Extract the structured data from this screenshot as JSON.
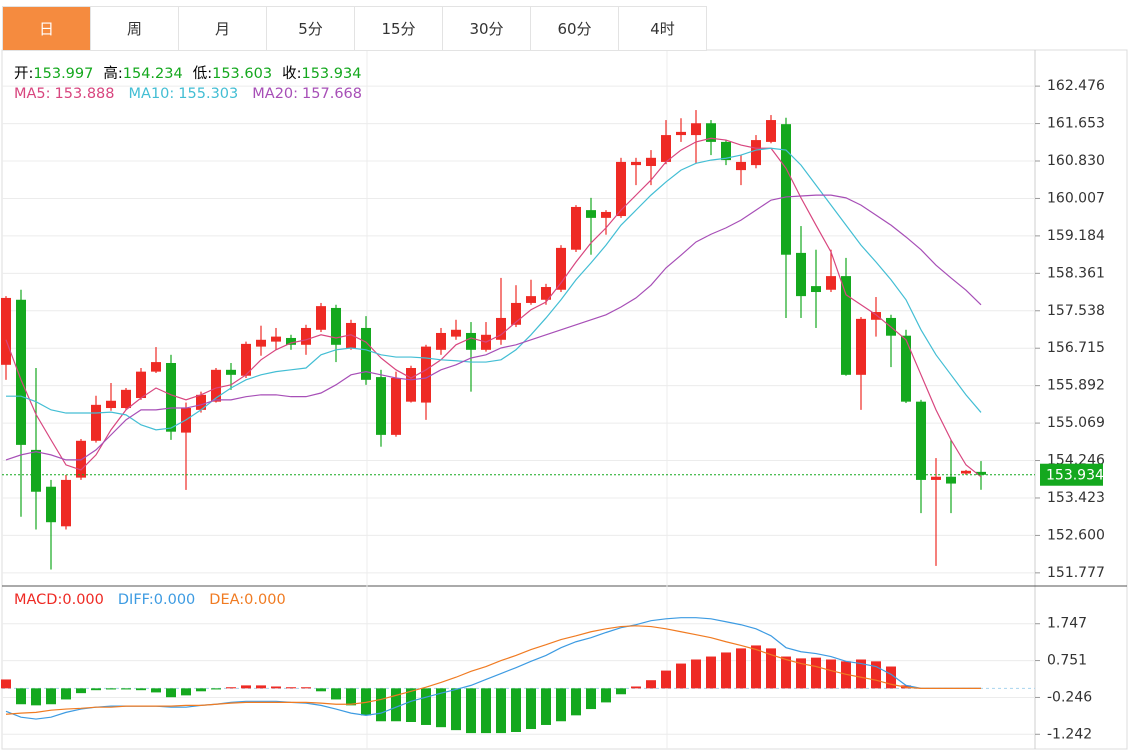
{
  "tabs": [
    "日",
    "周",
    "月",
    "5分",
    "15分",
    "30分",
    "60分",
    "4时"
  ],
  "chart_data": [
    {
      "type": "candlestick",
      "ohlc_labels": [
        "开",
        "高",
        "低",
        "收"
      ],
      "up_color": "#ee2a24",
      "down_color": "#14a81e",
      "open": [
        156.35,
        157.78,
        154.48,
        153.67,
        152.8,
        153.87,
        154.68,
        155.4,
        155.4,
        155.62,
        156.2,
        156.39,
        154.86,
        155.36,
        155.54,
        156.24,
        156.11,
        156.75,
        156.86,
        156.94,
        156.79,
        157.12,
        157.6,
        156.72,
        157.16,
        156.08,
        154.81,
        155.54,
        155.52,
        156.68,
        156.97,
        157.05,
        156.68,
        156.9,
        157.23,
        157.71,
        157.78,
        158.0,
        158.88,
        159.75,
        159.58,
        159.62,
        160.74,
        160.72,
        160.81,
        161.4,
        161.4,
        161.66,
        161.25,
        160.63,
        160.74,
        161.25,
        161.64,
        158.81,
        158.08,
        158.0,
        158.3,
        156.13,
        157.34,
        157.38,
        156.99,
        155.54,
        153.82,
        153.89,
        153.96,
        153.997
      ],
      "high": [
        157.86,
        158.0,
        156.28,
        153.82,
        153.93,
        154.72,
        155.67,
        155.95,
        155.84,
        156.28,
        156.74,
        156.57,
        155.52,
        155.76,
        156.28,
        156.39,
        156.86,
        157.21,
        157.16,
        157.01,
        157.23,
        157.71,
        157.67,
        157.34,
        157.42,
        156.24,
        156.2,
        156.33,
        156.79,
        157.16,
        157.34,
        157.29,
        157.29,
        158.26,
        158.1,
        158.22,
        158.13,
        158.98,
        159.86,
        160.02,
        159.75,
        160.9,
        160.9,
        161.07,
        161.73,
        161.77,
        161.95,
        161.73,
        161.29,
        160.96,
        161.4,
        161.84,
        161.78,
        159.4,
        158.88,
        158.88,
        158.7,
        157.4,
        157.84,
        157.45,
        157.12,
        155.58,
        154.3,
        154.7,
        154.04,
        154.234
      ],
      "low": [
        156.02,
        153.01,
        152.73,
        151.85,
        152.73,
        153.82,
        154.64,
        155.34,
        155.36,
        155.58,
        156.17,
        154.7,
        153.6,
        155.3,
        155.52,
        155.8,
        156.06,
        156.55,
        156.68,
        156.68,
        156.57,
        157.07,
        156.41,
        156.68,
        155.91,
        154.55,
        154.77,
        155.52,
        155.14,
        156.57,
        156.9,
        155.76,
        156.64,
        156.79,
        157.18,
        157.67,
        157.67,
        157.95,
        158.83,
        158.77,
        159.21,
        159.58,
        160.3,
        160.3,
        160.76,
        161.25,
        160.78,
        160.96,
        160.74,
        160.3,
        160.67,
        161.22,
        157.38,
        157.38,
        157.16,
        157.95,
        156.11,
        155.36,
        156.97,
        156.3,
        155.51,
        153.09,
        151.93,
        153.09,
        153.93,
        153.603
      ],
      "close": [
        157.82,
        154.59,
        153.56,
        152.89,
        153.82,
        154.68,
        155.47,
        155.56,
        155.8,
        156.2,
        156.41,
        154.88,
        155.4,
        155.69,
        156.24,
        156.13,
        156.81,
        156.9,
        156.97,
        156.79,
        157.16,
        157.64,
        156.79,
        157.27,
        156.02,
        154.81,
        156.06,
        156.28,
        156.75,
        157.05,
        157.12,
        156.68,
        157.01,
        157.38,
        157.71,
        157.86,
        158.06,
        158.92,
        159.82,
        159.58,
        159.71,
        160.81,
        160.81,
        160.9,
        161.4,
        161.47,
        161.66,
        161.25,
        160.85,
        160.81,
        161.29,
        161.73,
        158.77,
        157.86,
        157.95,
        158.3,
        156.13,
        157.36,
        157.51,
        156.99,
        155.54,
        153.82,
        153.89,
        153.74,
        154.02,
        153.934
      ],
      "series": [
        {
          "name": "MA5",
          "color": "#d8467f",
          "values": [
            156.9,
            156.02,
            155.26,
            154.7,
            154.15,
            154.04,
            154.37,
            154.92,
            155.36,
            155.62,
            155.84,
            155.69,
            155.58,
            155.69,
            155.84,
            155.91,
            156.13,
            156.46,
            156.68,
            156.83,
            156.9,
            157.01,
            156.94,
            157.01,
            156.85,
            156.5,
            156.24,
            156.06,
            156.24,
            156.46,
            156.79,
            156.94,
            156.85,
            157.01,
            157.29,
            157.56,
            157.73,
            158.15,
            158.61,
            159.03,
            159.36,
            159.75,
            160.08,
            160.41,
            160.81,
            161.07,
            161.25,
            161.33,
            161.29,
            161.18,
            161.11,
            161.11,
            160.67,
            160.02,
            159.42,
            158.83,
            157.89,
            157.67,
            157.45,
            157.18,
            156.9,
            156.13,
            155.36,
            154.7,
            154.15,
            153.888
          ]
        },
        {
          "name": "MA10",
          "color": "#43bed4",
          "values": [
            155.66,
            155.66,
            155.54,
            155.36,
            155.29,
            155.29,
            155.29,
            155.31,
            155.25,
            155.03,
            154.92,
            154.96,
            155.14,
            155.36,
            155.62,
            155.84,
            156.02,
            156.13,
            156.2,
            156.24,
            156.28,
            156.57,
            156.68,
            156.72,
            156.68,
            156.57,
            156.52,
            156.52,
            156.5,
            156.46,
            156.44,
            156.41,
            156.41,
            156.46,
            156.68,
            157.01,
            157.38,
            157.78,
            158.22,
            158.59,
            158.98,
            159.42,
            159.75,
            160.08,
            160.37,
            160.63,
            160.78,
            160.85,
            160.89,
            160.96,
            161.07,
            161.11,
            161.07,
            160.74,
            160.3,
            159.86,
            159.42,
            158.98,
            158.61,
            158.22,
            157.78,
            157.12,
            156.57,
            156.13,
            155.69,
            155.303
          ]
        },
        {
          "name": "MA20",
          "color": "#a74fb7",
          "values": [
            154.26,
            154.37,
            154.44,
            154.37,
            154.26,
            154.26,
            154.48,
            154.81,
            155.14,
            155.36,
            155.36,
            155.4,
            155.4,
            155.47,
            155.58,
            155.58,
            155.65,
            155.69,
            155.69,
            155.65,
            155.65,
            155.73,
            155.91,
            156.13,
            156.2,
            156.13,
            156.06,
            156.02,
            156.06,
            156.24,
            156.35,
            156.5,
            156.57,
            156.72,
            156.79,
            156.9,
            157.01,
            157.12,
            157.23,
            157.34,
            157.45,
            157.62,
            157.82,
            158.1,
            158.48,
            158.76,
            159.05,
            159.22,
            159.36,
            159.53,
            159.75,
            159.97,
            160.04,
            160.06,
            160.08,
            160.08,
            160.02,
            159.86,
            159.64,
            159.42,
            159.16,
            158.88,
            158.54,
            158.26,
            157.99,
            157.668
          ]
        }
      ],
      "ylim": [
        151.51,
        163.27
      ],
      "yticks": [
        162.476,
        161.653,
        {
          "value": 160.83,
          "label": "160.830"
        },
        160.007,
        159.184,
        158.361,
        157.538,
        156.715,
        155.892,
        155.069,
        154.246,
        153.423,
        {
          "value": 152.6,
          "label": "152.600"
        },
        151.777
      ],
      "grid": true
    },
    {
      "type": "macd",
      "series": [
        {
          "name": "MACD",
          "label": "0.000",
          "color": "#ee2a24",
          "down_color": "#14a81e",
          "values": [
            0.24,
            -0.43,
            -0.46,
            -0.43,
            -0.3,
            -0.13,
            -0.05,
            -0.03,
            -0.03,
            -0.05,
            -0.11,
            -0.24,
            -0.19,
            -0.08,
            -0.03,
            0.03,
            0.08,
            0.08,
            0.05,
            0.03,
            0.03,
            -0.08,
            -0.3,
            -0.46,
            -0.73,
            -0.89,
            -0.89,
            -0.91,
            -0.99,
            -1.05,
            -1.13,
            -1.21,
            -1.21,
            -1.21,
            -1.18,
            -1.1,
            -0.99,
            -0.89,
            -0.73,
            -0.56,
            -0.38,
            -0.16,
            0.05,
            0.22,
            0.48,
            0.67,
            0.78,
            0.86,
            0.97,
            1.08,
            1.16,
            1.08,
            0.86,
            0.81,
            0.83,
            0.78,
            0.73,
            0.78,
            0.73,
            0.59,
            0.08,
            0,
            0,
            0,
            0,
            0
          ]
        },
        {
          "name": "DIFF",
          "label": "0.000",
          "color": "#3d9be2",
          "values": [
            -0.62,
            -0.78,
            -0.83,
            -0.78,
            -0.65,
            -0.56,
            -0.51,
            -0.48,
            -0.48,
            -0.48,
            -0.48,
            -0.51,
            -0.51,
            -0.46,
            -0.43,
            -0.38,
            -0.35,
            -0.35,
            -0.35,
            -0.38,
            -0.4,
            -0.46,
            -0.56,
            -0.67,
            -0.73,
            -0.67,
            -0.51,
            -0.35,
            -0.24,
            -0.13,
            -0.03,
            0.08,
            0.24,
            0.4,
            0.56,
            0.73,
            0.89,
            1.1,
            1.26,
            1.37,
            1.51,
            1.64,
            1.72,
            1.83,
            1.88,
            1.91,
            1.91,
            1.88,
            1.8,
            1.72,
            1.61,
            1.42,
            1.1,
            0.99,
            0.94,
            0.86,
            0.73,
            0.67,
            0.59,
            0.38,
            0.08,
            0,
            0,
            0,
            0,
            0
          ]
        },
        {
          "name": "DEA",
          "label": "0.000",
          "color": "#f07b22",
          "values": [
            -0.7,
            -0.67,
            -0.65,
            -0.59,
            -0.56,
            -0.54,
            -0.51,
            -0.51,
            -0.48,
            -0.48,
            -0.48,
            -0.48,
            -0.46,
            -0.46,
            -0.43,
            -0.4,
            -0.38,
            -0.38,
            -0.38,
            -0.38,
            -0.38,
            -0.4,
            -0.43,
            -0.43,
            -0.38,
            -0.3,
            -0.19,
            -0.08,
            0.03,
            0.16,
            0.3,
            0.46,
            0.59,
            0.75,
            0.89,
            1.05,
            1.18,
            1.32,
            1.42,
            1.53,
            1.61,
            1.67,
            1.69,
            1.67,
            1.61,
            1.53,
            1.45,
            1.37,
            1.26,
            1.16,
            1.05,
            0.91,
            0.78,
            0.67,
            0.59,
            0.48,
            0.38,
            0.3,
            0.22,
            0.11,
            0.03,
            0,
            0,
            0,
            0,
            0
          ]
        }
      ],
      "ylim": [
        -1.64,
        2.74
      ],
      "yticks": [
        1.747,
        0.751,
        -0.246,
        -1.242
      ]
    }
  ]
}
